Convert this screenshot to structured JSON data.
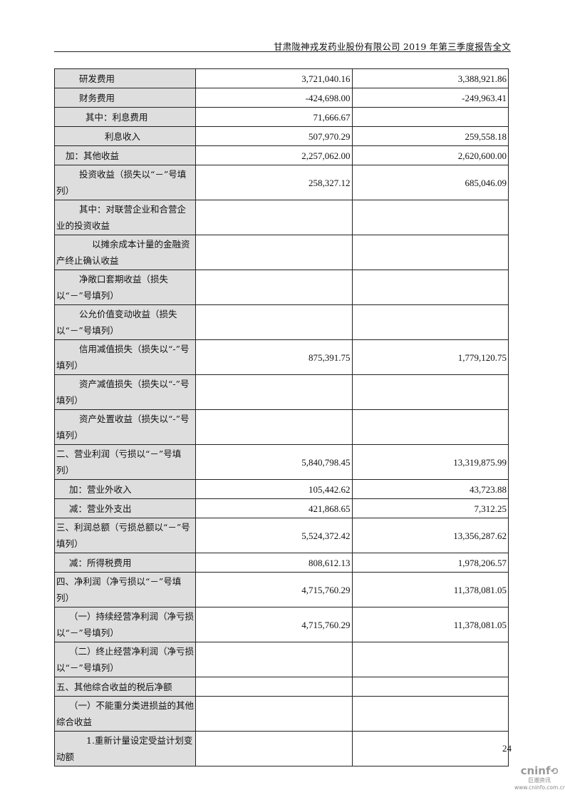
{
  "header": {
    "title": "甘肃陇神戎发药业股份有限公司 2019 年第三季度报告全文"
  },
  "rows": [
    {
      "label": "研发费用",
      "current": "3,721,040.16",
      "previous": "3,388,921.86"
    },
    {
      "label": "财务费用",
      "current": "-424,698.00",
      "previous": "-249,963.41"
    },
    {
      "label": "其中：利息费用",
      "current": "71,666.67",
      "previous": ""
    },
    {
      "label": "利息收入",
      "current": "507,970.29",
      "previous": "259,558.18"
    },
    {
      "label": "加：其他收益",
      "current": "2,257,062.00",
      "previous": "2,620,600.00"
    },
    {
      "label": "投资收益（损失以“－”号填列）",
      "current": "258,327.12",
      "previous": "685,046.09"
    },
    {
      "label": "其中：对联营企业和合营企业的投资收益",
      "current": "",
      "previous": ""
    },
    {
      "label": "以摊余成本计量的金融资产终止确认收益",
      "current": "",
      "previous": ""
    },
    {
      "label": "净敞口套期收益（损失以“－”号填列）",
      "current": "",
      "previous": ""
    },
    {
      "label": "公允价值变动收益（损失以“－”号填列）",
      "current": "",
      "previous": ""
    },
    {
      "label": "信用减值损失（损失以“-”号填列）",
      "current": "875,391.75",
      "previous": "1,779,120.75"
    },
    {
      "label": "资产减值损失（损失以“-”号填列）",
      "current": "",
      "previous": ""
    },
    {
      "label": "资产处置收益（损失以“-”号填列）",
      "current": "",
      "previous": ""
    },
    {
      "label": "二、营业利润（亏损以“－”号填列）",
      "current": "5,840,798.45",
      "previous": "13,319,875.99"
    },
    {
      "label": "加：营业外收入",
      "current": "105,442.62",
      "previous": "43,723.88"
    },
    {
      "label": "减：营业外支出",
      "current": "421,868.65",
      "previous": "7,312.25"
    },
    {
      "label": "三、利润总额（亏损总额以“－”号填列）",
      "current": "5,524,372.42",
      "previous": "13,356,287.62"
    },
    {
      "label": "减：所得税费用",
      "current": "808,612.13",
      "previous": "1,978,206.57"
    },
    {
      "label": "四、净利润（净亏损以“－”号填列）",
      "current": "4,715,760.29",
      "previous": "11,378,081.05"
    },
    {
      "label": "（一）持续经营净利润（净亏损以“－”号填列）",
      "current": "4,715,760.29",
      "previous": "11,378,081.05"
    },
    {
      "label": "（二）终止经营净利润（净亏损以“－”号填列）",
      "current": "",
      "previous": ""
    },
    {
      "label": "五、其他综合收益的税后净额",
      "current": "",
      "previous": ""
    },
    {
      "label": "（一）不能重分类进损益的其他综合收益",
      "current": "",
      "previous": ""
    },
    {
      "label": "1.重新计量设定受益计划变动额",
      "current": "",
      "previous": ""
    }
  ],
  "footer": {
    "page_number": "24",
    "logo_brand": "cninf",
    "logo_cn": "巨潮资讯",
    "logo_url": "www.cninfo.com.cn"
  }
}
